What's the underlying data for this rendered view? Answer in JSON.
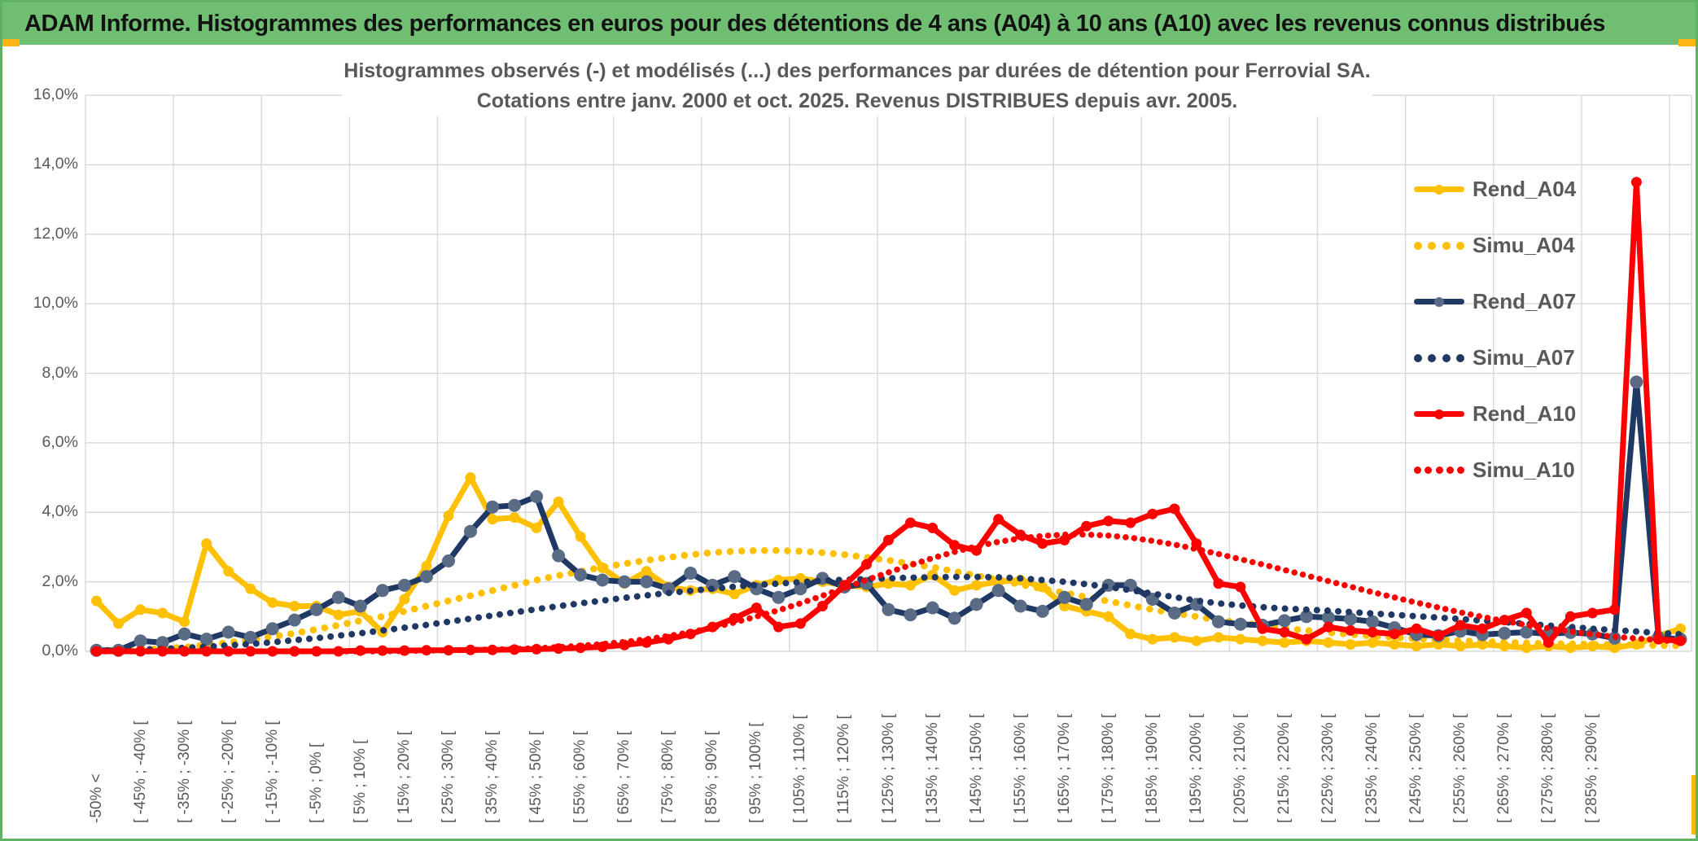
{
  "header": {
    "title": "ADAM Informe. Histogrammes des performances en euros pour des détentions de 4 ans (A04) à 10 ans (A10) avec les revenus connus distribués"
  },
  "chart": {
    "title_line1": "Histogrammes observés (-) et modélisés (...) des performances par durées de détention pour Ferrovial SA.",
    "title_line2": "Cotations entre janv. 2000 et oct. 2025. Revenus DISTRIBUES depuis avr. 2005."
  },
  "colors": {
    "gold": "#FFC000",
    "navy": "#1F3864",
    "navy_marker": "#5A6B85",
    "red": "#FF0000",
    "grid": "#D9D9D9",
    "axis_text": "#595959",
    "header_green": "#70BE71",
    "frame_green": "#5FB261",
    "accent_amber": "#FDB515"
  },
  "chart_data": {
    "type": "line",
    "title": "Histogrammes observés (-) et modélisés (...) des performances par durées de détention pour Ferrovial SA. Cotations entre janv. 2000 et oct. 2025. Revenus DISTRIBUES depuis avr. 2005.",
    "grid": true,
    "legend_position": "right",
    "y_axis": {
      "min": 0,
      "max": 16,
      "unit": "%",
      "ticks": [
        "0,0%",
        "2,0%",
        "4,0%",
        "6,0%",
        "8,0%",
        "10,0%",
        "12,0%",
        "14,0%",
        "16,0%"
      ]
    },
    "x_axis": {
      "total_bins": 73,
      "bin_width_pct": 5,
      "labeled_bins": "even indices 0..68",
      "labels": [
        "-50% <",
        "[ -45% ; -40% [",
        "[ -35% ; -30% [",
        "[ -25% ; -20% [",
        "[ -15% ; -10% [",
        "[ -5% ; 0% [",
        "[ 5% ; 10% [",
        "[ 15% ; 20% [",
        "[ 25% ; 30% [",
        "[ 35% ; 40% [",
        "[ 45% ; 50% [",
        "[ 55% ; 60% [",
        "[ 65% ; 70% [",
        "[ 75% ; 80% [",
        "[ 85% ; 90% [",
        "[ 95% ; 100% [",
        "[ 105% ; 110% [",
        "[ 115% ; 120% [",
        "[ 125% ; 130% [",
        "[ 135% ; 140% [",
        "[ 145% ; 150% [",
        "[ 155% ; 160% [",
        "[ 165% ; 170% [",
        "[ 175% ; 180% [",
        "[ 185% ; 190% [",
        "[ 195% ; 200% [",
        "[ 205% ; 210% [",
        "[ 215% ; 220% [",
        "[ 225% ; 230% [",
        "[ 235% ; 240% [",
        "[ 245% ; 250% [",
        "[ 255% ; 260% [",
        "[ 265% ; 270% [",
        "[ 275% ; 280% [",
        "[ 285% ; 290% ["
      ]
    },
    "legend": [
      "Rend_A04",
      "Simu_A04",
      "Rend_A07",
      "Simu_A07",
      "Rend_A10",
      "Simu_A10"
    ],
    "series": [
      {
        "name": "Rend_A04",
        "style": "solid",
        "color": "#FFC000",
        "values": [
          1.45,
          0.8,
          1.2,
          1.1,
          0.85,
          3.1,
          2.3,
          1.8,
          1.4,
          1.3,
          1.3,
          1.05,
          1.15,
          0.55,
          1.5,
          2.45,
          3.9,
          5.0,
          3.8,
          3.85,
          3.55,
          4.3,
          3.3,
          2.4,
          1.95,
          2.3,
          1.85,
          1.75,
          1.8,
          1.65,
          1.9,
          2.05,
          2.1,
          2.0,
          1.9,
          1.85,
          1.95,
          1.9,
          2.2,
          1.75,
          1.9,
          2.0,
          2.05,
          1.85,
          1.3,
          1.15,
          1.0,
          0.5,
          0.35,
          0.4,
          0.3,
          0.4,
          0.35,
          0.3,
          0.25,
          0.3,
          0.25,
          0.2,
          0.25,
          0.2,
          0.15,
          0.2,
          0.15,
          0.2,
          0.15,
          0.1,
          0.15,
          0.1,
          0.15,
          0.1,
          0.2,
          0.45,
          0.65
        ]
      },
      {
        "name": "Simu_A04",
        "style": "dotted",
        "color": "#FFC000",
        "values": [
          0.02,
          0.03,
          0.05,
          0.08,
          0.12,
          0.18,
          0.25,
          0.33,
          0.42,
          0.52,
          0.63,
          0.75,
          0.88,
          1.0,
          1.15,
          1.3,
          1.45,
          1.6,
          1.75,
          1.9,
          2.05,
          2.18,
          2.3,
          2.42,
          2.52,
          2.62,
          2.7,
          2.78,
          2.84,
          2.88,
          2.9,
          2.9,
          2.88,
          2.84,
          2.78,
          2.7,
          2.62,
          2.52,
          2.42,
          2.3,
          2.18,
          2.05,
          1.92,
          1.8,
          1.68,
          1.56,
          1.44,
          1.32,
          1.2,
          1.1,
          1.0,
          0.9,
          0.82,
          0.74,
          0.66,
          0.6,
          0.54,
          0.49,
          0.44,
          0.4,
          0.36,
          0.33,
          0.3,
          0.28,
          0.26,
          0.24,
          0.22,
          0.21,
          0.2,
          0.19,
          0.18,
          0.17,
          0.16
        ]
      },
      {
        "name": "Rend_A07",
        "style": "solid",
        "color": "#1F3864",
        "marker_color": "#5A6B85",
        "values": [
          0.03,
          0.03,
          0.3,
          0.25,
          0.5,
          0.35,
          0.55,
          0.4,
          0.65,
          0.9,
          1.2,
          1.55,
          1.3,
          1.75,
          1.9,
          2.15,
          2.6,
          3.45,
          4.15,
          4.2,
          4.45,
          2.75,
          2.2,
          2.05,
          2.0,
          2.0,
          1.8,
          2.25,
          1.9,
          2.15,
          1.8,
          1.55,
          1.8,
          2.1,
          1.85,
          1.95,
          1.2,
          1.05,
          1.25,
          0.95,
          1.35,
          1.75,
          1.3,
          1.15,
          1.55,
          1.35,
          1.9,
          1.9,
          1.5,
          1.1,
          1.35,
          0.85,
          0.78,
          0.75,
          0.88,
          1.0,
          0.97,
          0.93,
          0.85,
          0.68,
          0.48,
          0.45,
          0.58,
          0.48,
          0.52,
          0.55,
          0.5,
          0.54,
          0.5,
          0.38,
          7.75,
          0.4,
          0.35
        ]
      },
      {
        "name": "Simu_A07",
        "style": "dotted",
        "color": "#1F3864",
        "values": [
          0.02,
          0.03,
          0.05,
          0.07,
          0.1,
          0.13,
          0.17,
          0.21,
          0.26,
          0.32,
          0.38,
          0.45,
          0.52,
          0.6,
          0.68,
          0.76,
          0.85,
          0.94,
          1.03,
          1.12,
          1.21,
          1.3,
          1.38,
          1.46,
          1.54,
          1.61,
          1.68,
          1.74,
          1.8,
          1.86,
          1.91,
          1.95,
          1.99,
          2.03,
          2.06,
          2.08,
          2.1,
          2.12,
          2.13,
          2.14,
          2.14,
          2.13,
          2.1,
          2.05,
          2.0,
          1.93,
          1.85,
          1.76,
          1.66,
          1.56,
          1.46,
          1.38,
          1.32,
          1.27,
          1.23,
          1.2,
          1.17,
          1.13,
          1.09,
          1.05,
          1.01,
          0.97,
          0.93,
          0.88,
          0.84,
          0.79,
          0.74,
          0.7,
          0.65,
          0.61,
          0.57,
          0.53,
          0.49
        ]
      },
      {
        "name": "Rend_A10",
        "style": "solid",
        "color": "#FF0000",
        "values": [
          0,
          0,
          0,
          0,
          0,
          0,
          0,
          0,
          0,
          0,
          0,
          0,
          0.02,
          0.02,
          0.02,
          0.03,
          0.03,
          0.04,
          0.04,
          0.05,
          0.06,
          0.08,
          0.1,
          0.13,
          0.18,
          0.25,
          0.35,
          0.5,
          0.7,
          0.95,
          1.25,
          0.7,
          0.8,
          1.3,
          1.9,
          2.5,
          3.2,
          3.7,
          3.55,
          3.05,
          2.9,
          3.8,
          3.35,
          3.1,
          3.2,
          3.6,
          3.75,
          3.7,
          3.95,
          4.1,
          3.1,
          1.95,
          1.85,
          0.65,
          0.55,
          0.35,
          0.7,
          0.6,
          0.55,
          0.5,
          0.65,
          0.45,
          0.75,
          0.65,
          0.9,
          1.1,
          0.25,
          1.0,
          1.1,
          1.2,
          13.5,
          0.35,
          0.3
        ]
      },
      {
        "name": "Simu_A10",
        "style": "dotted",
        "color": "#FF0000",
        "values": [
          0,
          0,
          0,
          0,
          0,
          0,
          0,
          0,
          0,
          0,
          0,
          0,
          0,
          0,
          0.01,
          0.02,
          0.03,
          0.04,
          0.05,
          0.07,
          0.09,
          0.12,
          0.16,
          0.21,
          0.27,
          0.35,
          0.44,
          0.55,
          0.68,
          0.83,
          1.0,
          1.18,
          1.38,
          1.6,
          1.82,
          2.05,
          2.27,
          2.48,
          2.68,
          2.86,
          3.02,
          3.15,
          3.25,
          3.32,
          3.36,
          3.36,
          3.33,
          3.27,
          3.18,
          3.07,
          2.94,
          2.8,
          2.65,
          2.5,
          2.34,
          2.18,
          2.02,
          1.86,
          1.7,
          1.55,
          1.4,
          1.26,
          1.12,
          0.99,
          0.87,
          0.76,
          0.66,
          0.57,
          0.49,
          0.42,
          0.37,
          0.32,
          0.28
        ]
      }
    ]
  }
}
